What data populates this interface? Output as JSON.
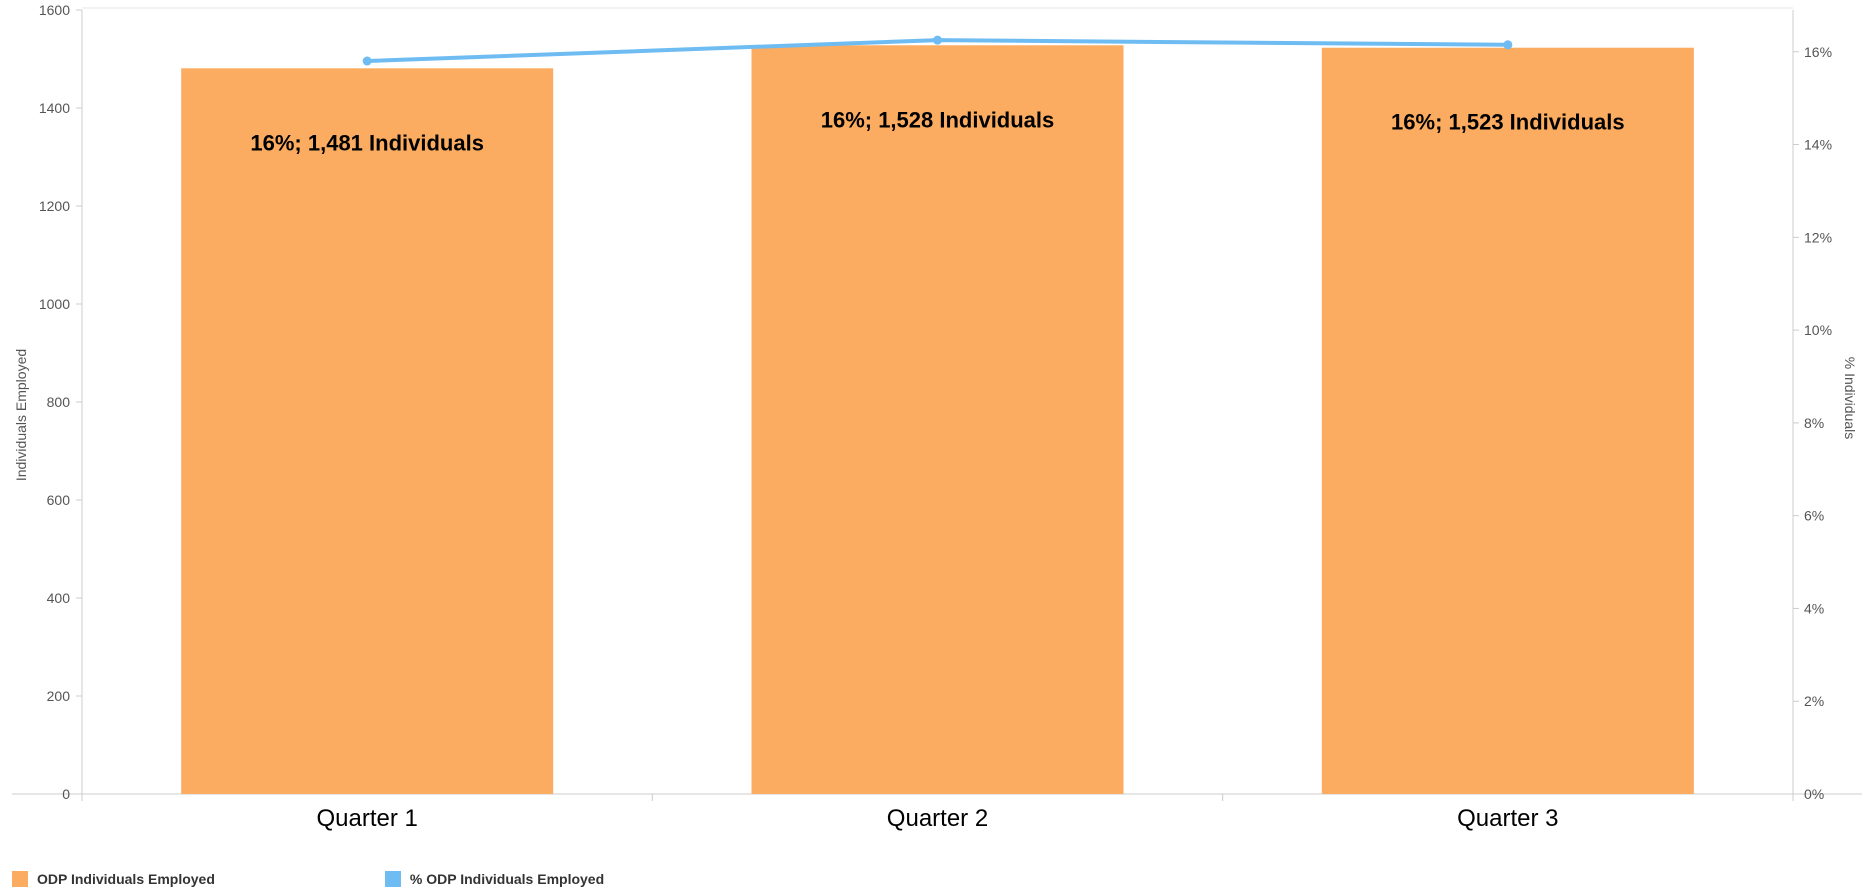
{
  "chart_data": {
    "type": "bar",
    "categories": [
      "Quarter 1",
      "Quarter 2",
      "Quarter 3"
    ],
    "series": [
      {
        "name": "ODP Individuals Employed",
        "kind": "bar",
        "axis": "left",
        "color": "#FBAC60",
        "values": [
          1481,
          1528,
          1523
        ],
        "data_labels": [
          "16%; 1,481 Individuals",
          "16%; 1,528 Individuals",
          "16%; 1,523 Individuals"
        ]
      },
      {
        "name": "% ODP Individuals Employed",
        "kind": "line",
        "axis": "right",
        "color": "#6EBCF2",
        "values": [
          15.8,
          16.25,
          16.15
        ]
      }
    ],
    "ylabel": "Individuals Employed",
    "y2label": "% Individuals",
    "ylim": [
      0,
      1600
    ],
    "y2lim": [
      0,
      16.9
    ],
    "yticks": [
      0,
      200,
      400,
      600,
      800,
      1000,
      1200,
      1400,
      1600
    ],
    "y2ticks": [
      0,
      2,
      4,
      6,
      8,
      10,
      12,
      14,
      16
    ],
    "y2_tick_suffix": "%",
    "grid": false,
    "legend_position": "bottom-left"
  }
}
